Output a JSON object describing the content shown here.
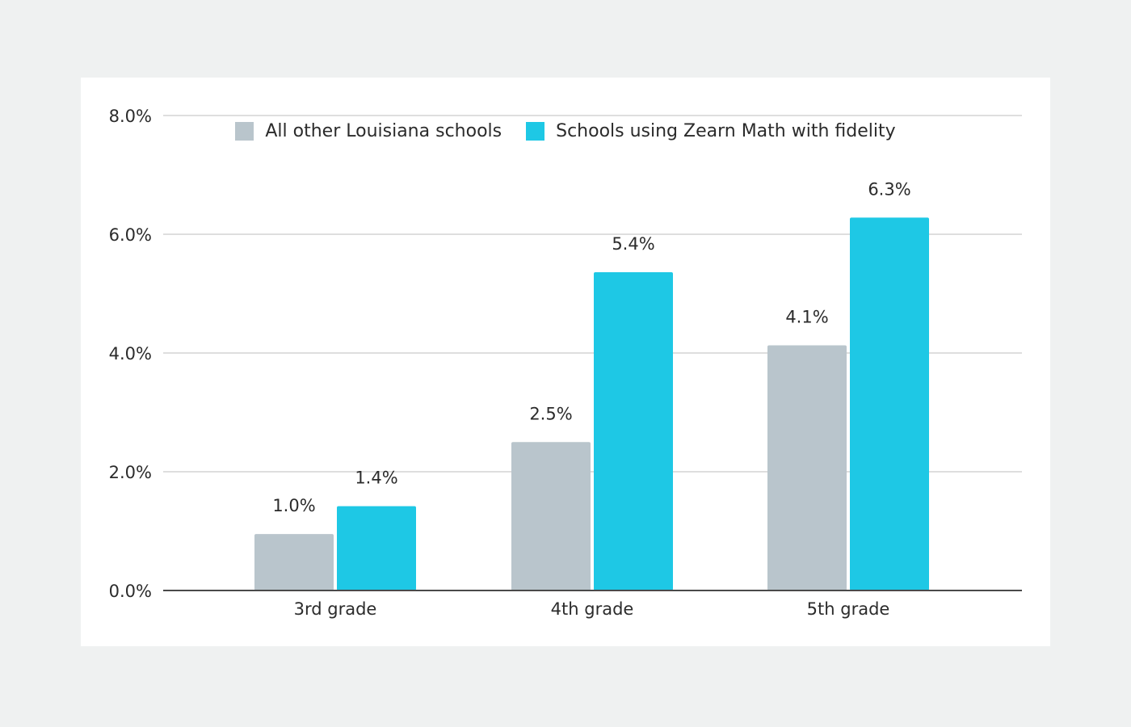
{
  "colors": {
    "background": "#eff1f1",
    "card": "#ffffff",
    "series_other": "#b9c5cc",
    "series_zearn": "#1ec8e5",
    "gridline": "#d3d3d3",
    "axis": "#4a4a4a",
    "text": "#2b2b2b"
  },
  "chart_data": {
    "type": "bar",
    "categories": [
      "3rd grade",
      "4th grade",
      "5th grade"
    ],
    "series": [
      {
        "name": "All other Louisiana schools",
        "values": [
          0.95,
          2.5,
          4.13
        ],
        "labels": [
          "1.0%",
          "2.5%",
          "4.1%"
        ],
        "color": "#b9c5cc"
      },
      {
        "name": "Schools using Zearn Math with fidelity",
        "values": [
          1.42,
          5.36,
          6.28
        ],
        "labels": [
          "1.4%",
          "5.4%",
          "6.3%"
        ],
        "color": "#1ec8e5"
      }
    ],
    "ylim": [
      0,
      8
    ],
    "yticks": [
      0,
      2,
      4,
      6,
      8
    ],
    "ytick_labels": [
      "0.0%",
      "2.0%",
      "4.0%",
      "6.0%",
      "8.0%"
    ],
    "title": "",
    "xlabel": "",
    "ylabel": "",
    "grid": true,
    "legend_position": "top"
  }
}
